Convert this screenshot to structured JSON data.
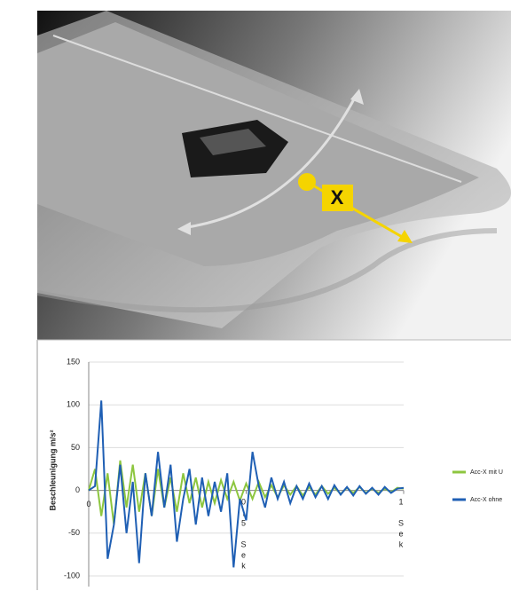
{
  "image": {
    "axis_label": "X"
  },
  "chart_data": {
    "type": "line",
    "y_label": "Beschleunigung m/s²",
    "x": [
      0,
      0.02,
      0.04,
      0.06,
      0.08,
      0.1,
      0.12,
      0.14,
      0.16,
      0.18,
      0.2,
      0.22,
      0.24,
      0.26,
      0.28,
      0.3,
      0.32,
      0.34,
      0.36,
      0.38,
      0.4,
      0.42,
      0.44,
      0.46,
      0.48,
      0.5,
      0.52,
      0.54,
      0.56,
      0.58,
      0.6,
      0.62,
      0.64,
      0.66,
      0.68,
      0.7,
      0.72,
      0.74,
      0.76,
      0.78,
      0.8,
      0.82,
      0.84,
      0.86,
      0.88,
      0.9,
      0.92,
      0.94,
      0.96,
      0.98,
      1.0
    ],
    "series": [
      {
        "name": "Acc-X mit U",
        "color": "#8dc63f",
        "values": [
          0,
          25,
          -30,
          20,
          -40,
          35,
          -20,
          30,
          -25,
          20,
          -30,
          25,
          -20,
          15,
          -25,
          20,
          -15,
          15,
          -20,
          10,
          -15,
          12,
          -10,
          10,
          -12,
          8,
          -10,
          10,
          -8,
          6,
          -8,
          6,
          -5,
          5,
          -6,
          4,
          -5,
          5,
          -4,
          3,
          -4,
          3,
          -3,
          4,
          -3,
          2,
          -3,
          2,
          -2,
          3,
          2
        ]
      },
      {
        "name": "Acc-X ohne",
        "color": "#1f5fb4",
        "values": [
          0,
          5,
          105,
          -80,
          -40,
          30,
          -50,
          10,
          -85,
          20,
          -30,
          45,
          -20,
          30,
          -60,
          -10,
          25,
          -40,
          15,
          -30,
          10,
          -25,
          20,
          -90,
          -10,
          -35,
          45,
          5,
          -20,
          15,
          -10,
          10,
          -15,
          5,
          -10,
          8,
          -8,
          5,
          -10,
          6,
          -5,
          4,
          -6,
          5,
          -4,
          3,
          -5,
          4,
          -3,
          2,
          3
        ]
      }
    ],
    "xlim": [
      0,
      1
    ],
    "xticks": [
      0,
      {
        "value": 0.5,
        "label": "0,5 Sek"
      },
      {
        "value": 1,
        "label": "1 Sek"
      }
    ],
    "ylim": [
      -100,
      150
    ],
    "yticks": [
      -100,
      -50,
      0,
      50,
      100,
      150
    ],
    "grid": true
  }
}
